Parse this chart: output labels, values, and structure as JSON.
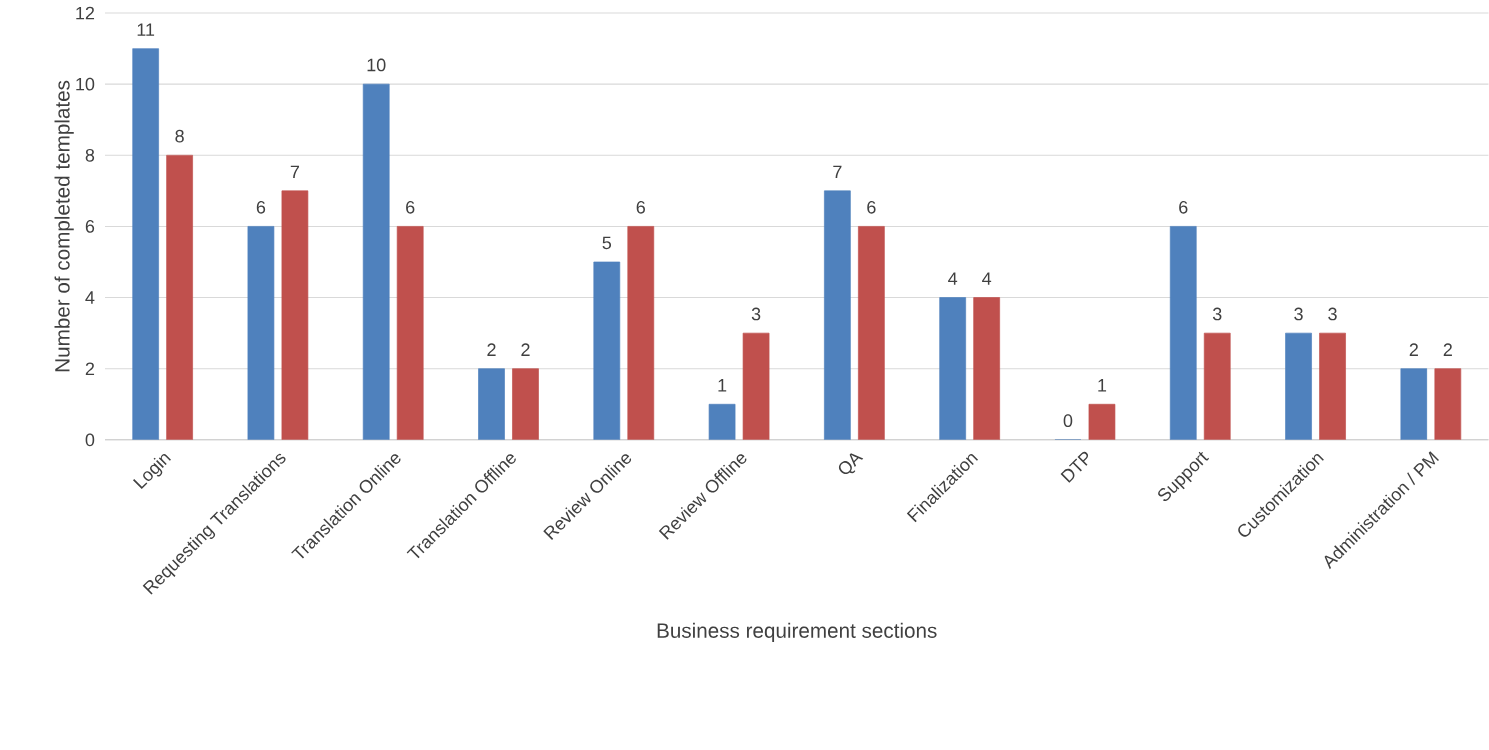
{
  "chart_data": {
    "type": "bar",
    "xlabel": "Business requirement sections",
    "ylabel": "Number of completed templates",
    "categories": [
      "Login",
      "Requesting Translations",
      "Translation Online",
      "Translation Offline",
      "Review Online",
      "Review Offline",
      "QA",
      "Finalization",
      "DTP",
      "Support",
      "Customization",
      "Administration / PM"
    ],
    "series": [
      {
        "color": "#4f81bd",
        "values": [
          11,
          6,
          10,
          2,
          5,
          1,
          7,
          4,
          0,
          6,
          3,
          2
        ]
      },
      {
        "color": "#c0504d",
        "values": [
          8,
          7,
          6,
          2,
          6,
          3,
          6,
          4,
          1,
          3,
          3,
          2
        ]
      }
    ],
    "ylim": [
      0,
      12
    ],
    "yticks": [
      0,
      2,
      4,
      6,
      8,
      10,
      12
    ],
    "grid": "y",
    "data_labels": true
  }
}
